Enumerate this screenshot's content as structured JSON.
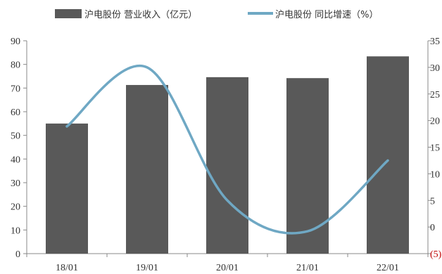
{
  "chart_data": {
    "type": "bar+line",
    "categories": [
      "18/01",
      "19/01",
      "20/01",
      "21/01",
      "22/01"
    ],
    "series": [
      {
        "name": "沪电股份 营业收入（亿元）",
        "type": "bar",
        "axis": "left",
        "color": "#595959",
        "values": [
          55.0,
          71.3,
          74.6,
          74.2,
          83.4
        ]
      },
      {
        "name": "沪电股份 同比增速（%）",
        "type": "line",
        "axis": "right",
        "color": "#6fa8c4",
        "values": [
          18.9,
          30.0,
          5.0,
          -0.8,
          12.5
        ]
      }
    ],
    "y_left": {
      "lim": [
        0,
        90
      ],
      "ticks": [
        "0",
        "10",
        "20",
        "30",
        "40",
        "50",
        "60",
        "70",
        "80",
        "90"
      ]
    },
    "y_right": {
      "lim": [
        -5,
        35
      ],
      "ticks": [
        "(5)",
        "0",
        "5",
        "10",
        "15",
        "20",
        "25",
        "30",
        "35"
      ],
      "highlight_color": "#c00000"
    },
    "grid": false,
    "legend": "top"
  }
}
